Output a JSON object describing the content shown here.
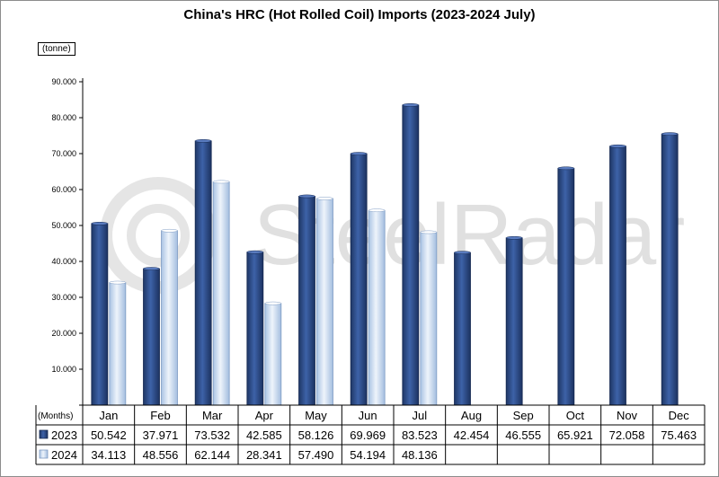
{
  "chart_data": {
    "type": "bar",
    "title": "China's HRC (Hot Rolled Coil) Imports (2023-2024 July)",
    "unit_label": "(tonne)",
    "table_header_label": "(Months)",
    "categories": [
      "Jan",
      "Feb",
      "Mar",
      "Apr",
      "May",
      "Jun",
      "Jul",
      "Aug",
      "Sep",
      "Oct",
      "Nov",
      "Dec"
    ],
    "series": [
      {
        "name": "2023",
        "color": "#2e4b86",
        "values": [
          50.542,
          37.971,
          73.532,
          42.585,
          58.126,
          69.969,
          83.523,
          42.454,
          46.555,
          65.921,
          72.058,
          75.463
        ],
        "labels": [
          "50.542",
          "37.971",
          "73.532",
          "42.585",
          "58.126",
          "69.969",
          "83.523",
          "42.454",
          "46.555",
          "65.921",
          "72.058",
          "75.463"
        ]
      },
      {
        "name": "2024",
        "color": "#c9dcf2",
        "values": [
          34.113,
          48.556,
          62.144,
          28.341,
          57.49,
          54.194,
          48.136,
          null,
          null,
          null,
          null,
          null
        ],
        "labels": [
          "34.113",
          "48.556",
          "62.144",
          "28.341",
          "57.490",
          "54.194",
          "48.136",
          "",
          "",
          "",
          "",
          ""
        ]
      }
    ],
    "yticks": [
      "",
      "10.000",
      "20.000",
      "30.000",
      "40.000",
      "50.000",
      "60.000",
      "70.000",
      "80.000",
      "90.000"
    ],
    "ylim": [
      0,
      90
    ],
    "grid": false,
    "legend": "data-table"
  },
  "watermark": {
    "text": "SteelRadar"
  }
}
